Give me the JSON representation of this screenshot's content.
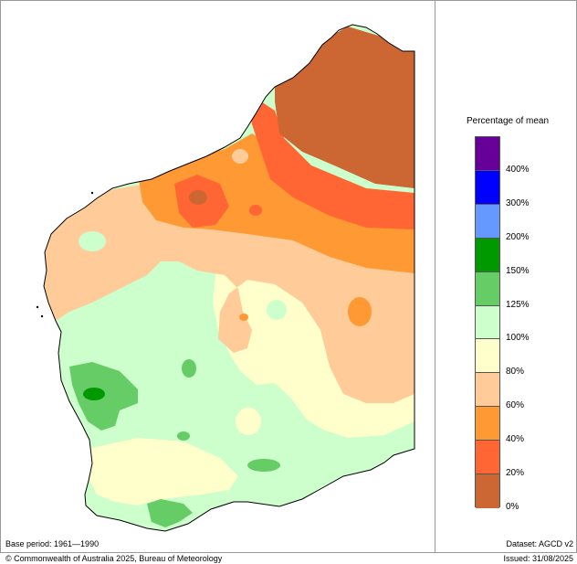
{
  "legend": {
    "title": "Percentage of mean",
    "segments": [
      {
        "color": "#660099"
      },
      {
        "color": "#0000ff"
      },
      {
        "color": "#6699ff"
      },
      {
        "color": "#009900"
      },
      {
        "color": "#66cc66"
      },
      {
        "color": "#ccffcc"
      },
      {
        "color": "#ffffcc"
      },
      {
        "color": "#ffcc99"
      },
      {
        "color": "#ff9933"
      },
      {
        "color": "#ff6633"
      },
      {
        "color": "#cc6633"
      }
    ],
    "labels": [
      "400%",
      "300%",
      "200%",
      "150%",
      "125%",
      "100%",
      "80%",
      "60%",
      "40%",
      "20%",
      "0%"
    ]
  },
  "footer": {
    "base_period": "Base period: 1961—1990",
    "dataset": "Dataset: AGCD v2",
    "copyright": "© Commonwealth of Australia 2025, Bureau of Meteorology",
    "issued": "Issued: 31/08/2025"
  }
}
